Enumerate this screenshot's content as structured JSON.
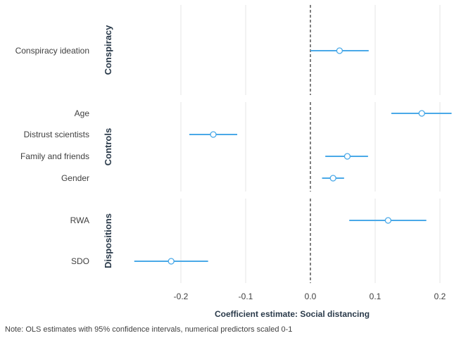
{
  "chart_data": {
    "type": "scatter",
    "xlabel": "Coefficient estimate: Social distancing",
    "xticks": [
      -0.2,
      -0.1,
      0.0,
      0.1,
      0.2
    ],
    "xtick_labels": [
      "-0.2",
      "-0.1",
      "0.0",
      "0.1",
      "0.2"
    ],
    "xlim": [
      -0.27,
      0.218
    ],
    "reference_line": 0,
    "grid": "vertical",
    "point_color": "#4aa9e8",
    "panels": [
      {
        "name": "Conspiracy",
        "rows": [
          {
            "label": "Conspiracy ideation",
            "estimate": 0.045,
            "lower": 0.0,
            "upper": 0.09
          }
        ]
      },
      {
        "name": "Controls",
        "rows": [
          {
            "label": "Age",
            "estimate": 0.172,
            "lower": 0.125,
            "upper": 0.218
          },
          {
            "label": "Distrust scientists",
            "estimate": -0.15,
            "lower": -0.187,
            "upper": -0.113
          },
          {
            "label": "Family and friends",
            "estimate": 0.057,
            "lower": 0.023,
            "upper": 0.089
          },
          {
            "label": "Gender",
            "estimate": 0.035,
            "lower": 0.018,
            "upper": 0.052
          }
        ]
      },
      {
        "name": "Dispositions",
        "rows": [
          {
            "label": "RWA",
            "estimate": 0.12,
            "lower": 0.06,
            "upper": 0.179
          },
          {
            "label": "SDO",
            "estimate": -0.215,
            "lower": -0.272,
            "upper": -0.158
          }
        ]
      }
    ]
  },
  "note": "Note: OLS estimates with 95% confidence intervals, numerical predictors scaled 0-1"
}
